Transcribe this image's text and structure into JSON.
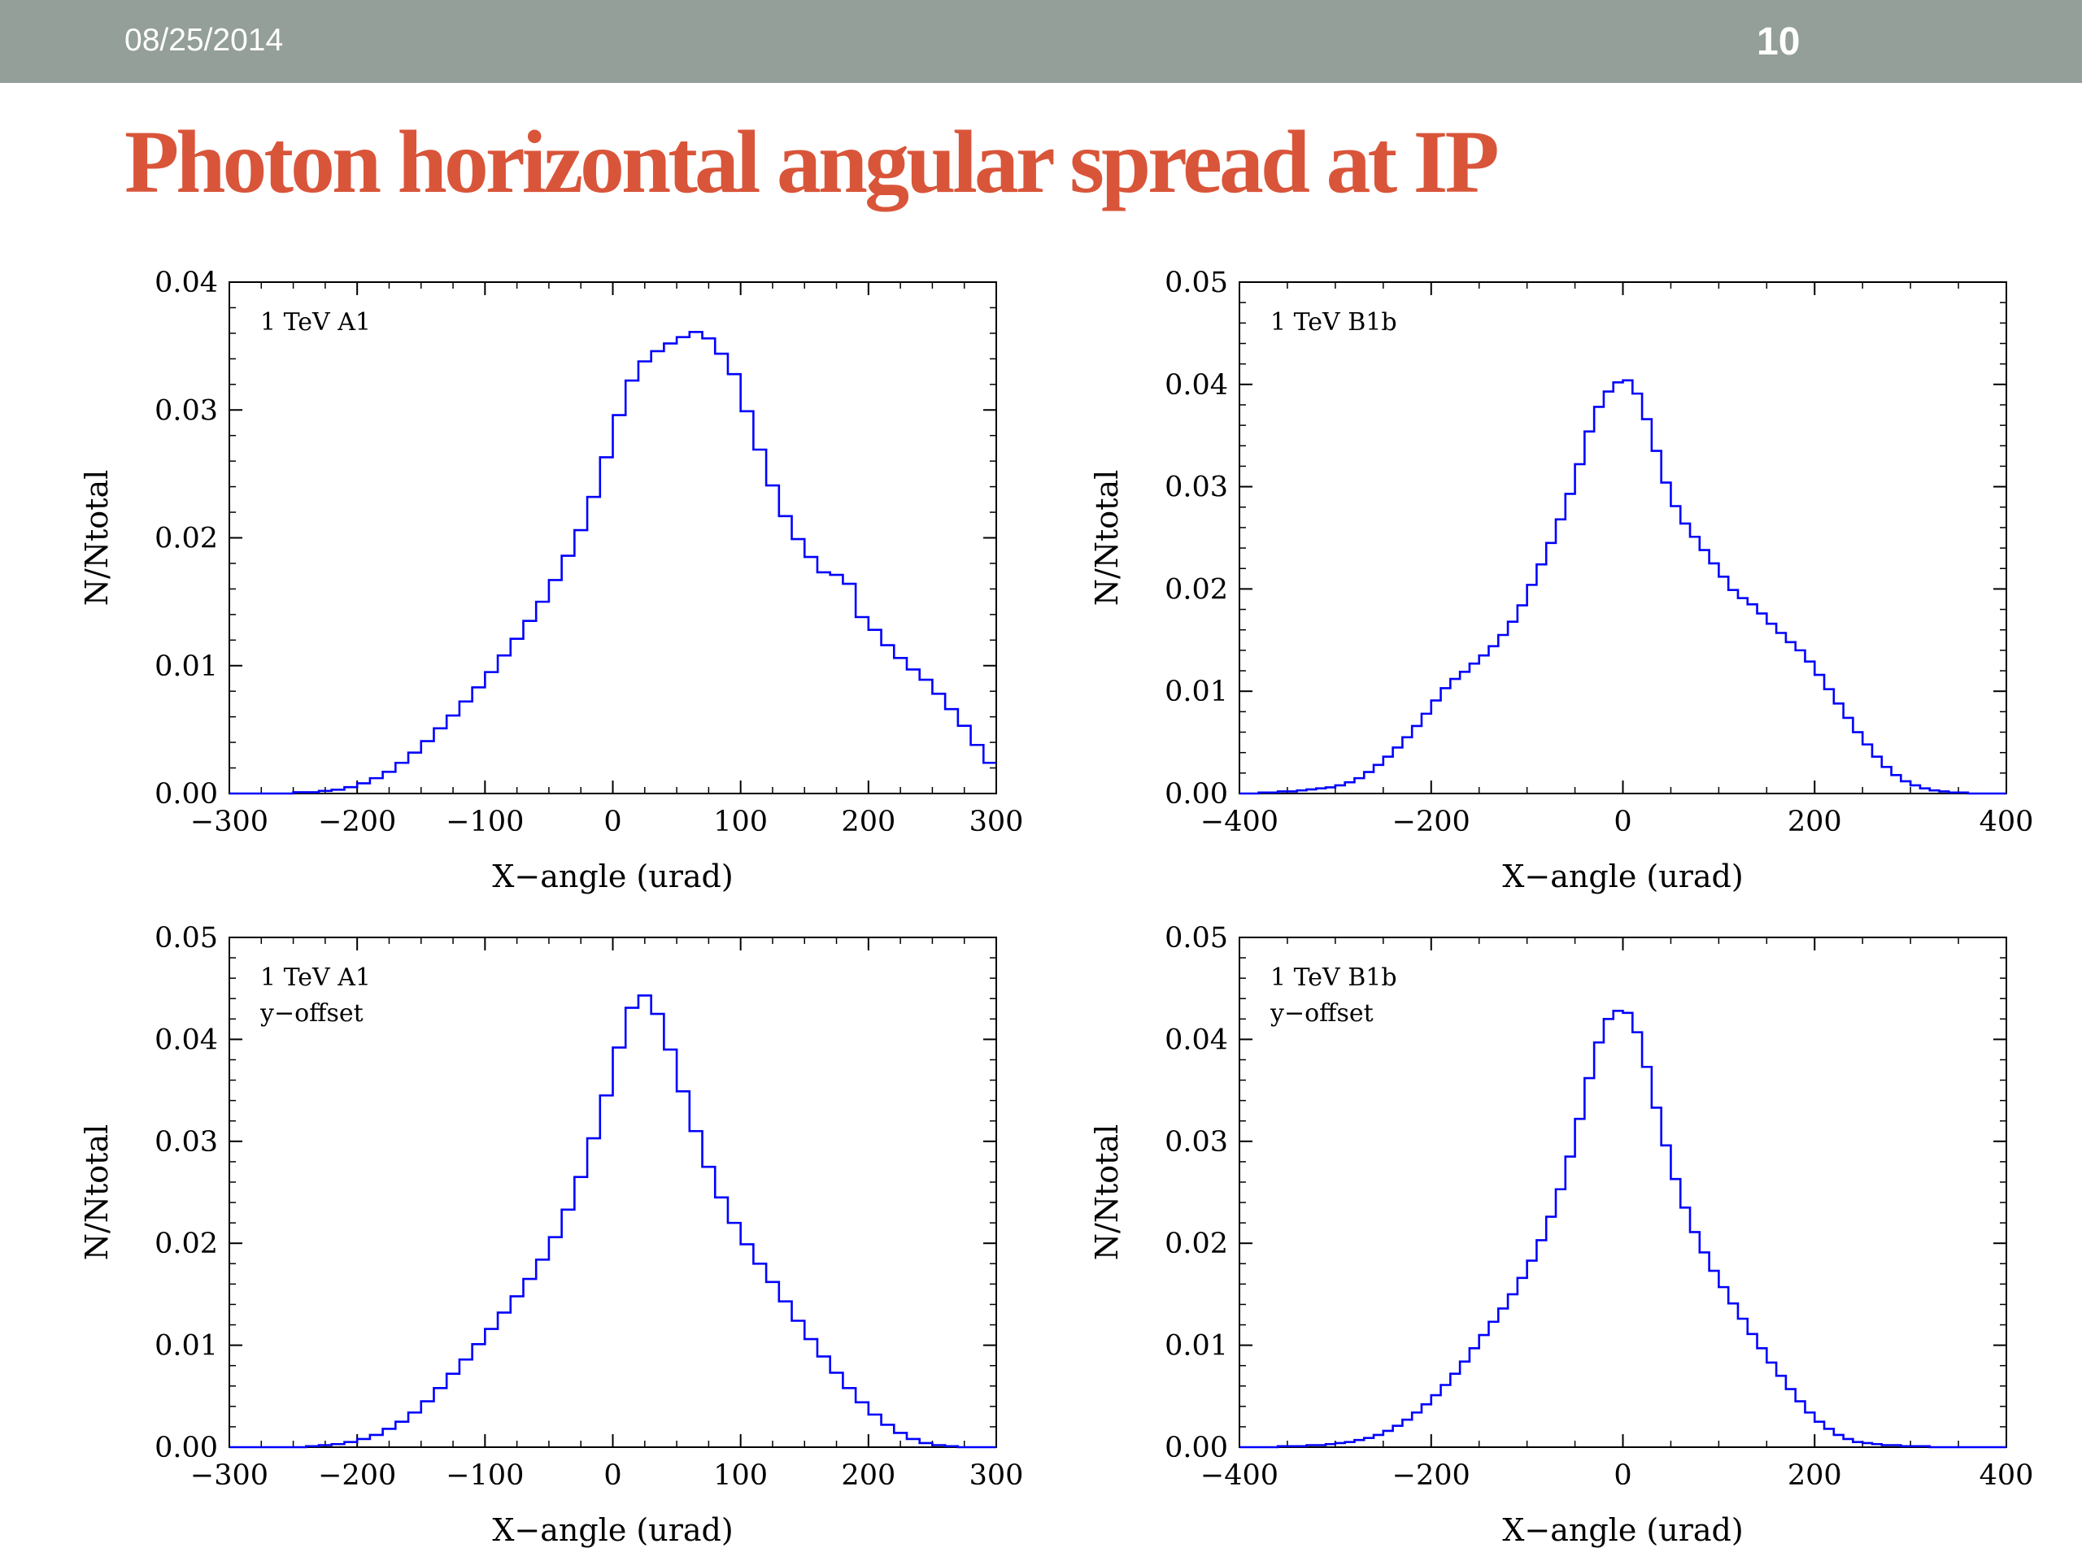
{
  "header": {
    "date": "08/25/2014",
    "slide_number": "10"
  },
  "title": "Photon horizontal angular spread at IP",
  "colors": {
    "line": "#0000ff",
    "header_bg": "#939f98",
    "title": "#d9553a"
  },
  "chart_data": [
    {
      "type": "line",
      "step": true,
      "labels": [
        "1 TeV A1"
      ],
      "xlabel": "X−angle (urad)",
      "ylabel": "N/Ntotal",
      "xlim": [
        -300,
        300
      ],
      "ylim": [
        0,
        0.04
      ],
      "xticks": [
        -300,
        -200,
        -100,
        0,
        100,
        200,
        300
      ],
      "xtick_labels": [
        "−300",
        "−200",
        "−100",
        "0",
        "100",
        "200",
        "300"
      ],
      "yticks": [
        0,
        0.01,
        0.02,
        0.03,
        0.04
      ],
      "ytick_labels": [
        "0.00",
        "0.01",
        "0.02",
        "0.03",
        "0.04"
      ],
      "bin_width": 10,
      "series": [
        {
          "x": [
            -300,
            -290,
            -280,
            -270,
            -260,
            -250,
            -240,
            -230,
            -220,
            -210,
            -200,
            -190,
            -180,
            -170,
            -160,
            -150,
            -140,
            -130,
            -120,
            -110,
            -100,
            -90,
            -80,
            -70,
            -60,
            -50,
            -40,
            -30,
            -20,
            -10,
            0,
            10,
            20,
            30,
            40,
            50,
            60,
            70,
            80,
            90,
            100,
            110,
            120,
            130,
            140,
            150,
            160,
            170,
            180,
            190,
            200,
            210,
            220,
            230,
            240,
            250,
            260,
            270,
            280,
            290
          ],
          "values": [
            0,
            0,
            0,
            0,
            0,
            0.0001,
            0.0001,
            0.0002,
            0.0003,
            0.0005,
            0.0008,
            0.0012,
            0.0017,
            0.0024,
            0.0032,
            0.0041,
            0.0051,
            0.0061,
            0.0072,
            0.0083,
            0.0095,
            0.0108,
            0.0121,
            0.0135,
            0.015,
            0.0167,
            0.0186,
            0.0206,
            0.0232,
            0.0263,
            0.0296,
            0.0323,
            0.0338,
            0.0346,
            0.0352,
            0.0357,
            0.0361,
            0.0356,
            0.0344,
            0.0328,
            0.0299,
            0.0269,
            0.0241,
            0.0217,
            0.0199,
            0.0185,
            0.0173,
            0.0171,
            0.0164,
            0.0138,
            0.0128,
            0.0116,
            0.0106,
            0.0097,
            0.0089,
            0.0078,
            0.0066,
            0.0053,
            0.0038,
            0.0024
          ]
        }
      ]
    },
    {
      "type": "line",
      "step": true,
      "labels": [
        "1 TeV B1b"
      ],
      "xlabel": "X−angle (urad)",
      "ylabel": "N/Ntotal",
      "xlim": [
        -400,
        400
      ],
      "ylim": [
        0,
        0.05
      ],
      "xticks": [
        -400,
        -200,
        0,
        200,
        400
      ],
      "xtick_labels": [
        "−400",
        "−200",
        "0",
        "200",
        "400"
      ],
      "yticks": [
        0,
        0.01,
        0.02,
        0.03,
        0.04,
        0.05
      ],
      "ytick_labels": [
        "0.00",
        "0.01",
        "0.02",
        "0.03",
        "0.04",
        "0.05"
      ],
      "bin_width": 10,
      "series": [
        {
          "x": [
            -400,
            -390,
            -380,
            -370,
            -360,
            -350,
            -340,
            -330,
            -320,
            -310,
            -300,
            -290,
            -280,
            -270,
            -260,
            -250,
            -240,
            -230,
            -220,
            -210,
            -200,
            -190,
            -180,
            -170,
            -160,
            -150,
            -140,
            -130,
            -120,
            -110,
            -100,
            -90,
            -80,
            -70,
            -60,
            -50,
            -40,
            -30,
            -20,
            -10,
            0,
            10,
            20,
            30,
            40,
            50,
            60,
            70,
            80,
            90,
            100,
            110,
            120,
            130,
            140,
            150,
            160,
            170,
            180,
            190,
            200,
            210,
            220,
            230,
            240,
            250,
            260,
            270,
            280,
            290,
            300,
            310,
            320,
            330,
            340,
            350,
            360,
            370,
            380,
            390
          ],
          "values": [
            0,
            0,
            0.0001,
            0.0001,
            0.0002,
            0.0002,
            0.0003,
            0.0004,
            0.0005,
            0.0006,
            0.0008,
            0.0011,
            0.0015,
            0.0021,
            0.0028,
            0.0036,
            0.0045,
            0.0055,
            0.0066,
            0.0078,
            0.0091,
            0.0103,
            0.0112,
            0.0119,
            0.0127,
            0.0135,
            0.0144,
            0.0155,
            0.0168,
            0.0184,
            0.0204,
            0.0224,
            0.0245,
            0.0268,
            0.0293,
            0.0322,
            0.0354,
            0.0378,
            0.0393,
            0.0402,
            0.0404,
            0.0391,
            0.0366,
            0.0335,
            0.0304,
            0.0281,
            0.0264,
            0.0251,
            0.0238,
            0.0225,
            0.0212,
            0.0199,
            0.0191,
            0.0185,
            0.0176,
            0.0166,
            0.0157,
            0.0148,
            0.014,
            0.0129,
            0.0116,
            0.0102,
            0.0088,
            0.0074,
            0.006,
            0.0048,
            0.0036,
            0.0026,
            0.0018,
            0.0012,
            0.0008,
            0.0005,
            0.0003,
            0.0002,
            0.0001,
            0.0001,
            0,
            0,
            0,
            0
          ]
        }
      ]
    },
    {
      "type": "line",
      "step": true,
      "labels": [
        "1 TeV A1",
        "y−offset"
      ],
      "xlabel": "X−angle (urad)",
      "ylabel": "N/Ntotal",
      "xlim": [
        -300,
        300
      ],
      "ylim": [
        0,
        0.05
      ],
      "xticks": [
        -300,
        -200,
        -100,
        0,
        100,
        200,
        300
      ],
      "xtick_labels": [
        "−300",
        "−200",
        "−100",
        "0",
        "100",
        "200",
        "300"
      ],
      "yticks": [
        0,
        0.01,
        0.02,
        0.03,
        0.04,
        0.05
      ],
      "ytick_labels": [
        "0.00",
        "0.01",
        "0.02",
        "0.03",
        "0.04",
        "0.05"
      ],
      "bin_width": 10,
      "series": [
        {
          "x": [
            -300,
            -290,
            -280,
            -270,
            -260,
            -250,
            -240,
            -230,
            -220,
            -210,
            -200,
            -190,
            -180,
            -170,
            -160,
            -150,
            -140,
            -130,
            -120,
            -110,
            -100,
            -90,
            -80,
            -70,
            -60,
            -50,
            -40,
            -30,
            -20,
            -10,
            0,
            10,
            20,
            30,
            40,
            50,
            60,
            70,
            80,
            90,
            100,
            110,
            120,
            130,
            140,
            150,
            160,
            170,
            180,
            190,
            200,
            210,
            220,
            230,
            240,
            250,
            260,
            270,
            280,
            290
          ],
          "values": [
            0,
            0,
            0,
            0,
            0,
            0,
            0.0001,
            0.0002,
            0.0003,
            0.0005,
            0.0008,
            0.0012,
            0.0018,
            0.0025,
            0.0034,
            0.0045,
            0.0058,
            0.0072,
            0.0086,
            0.0101,
            0.0116,
            0.0132,
            0.0148,
            0.0165,
            0.0184,
            0.0206,
            0.0233,
            0.0265,
            0.0303,
            0.0345,
            0.0392,
            0.0431,
            0.0443,
            0.0425,
            0.039,
            0.0349,
            0.031,
            0.0275,
            0.0245,
            0.022,
            0.0199,
            0.018,
            0.0162,
            0.0143,
            0.0124,
            0.0106,
            0.0089,
            0.0073,
            0.0058,
            0.0044,
            0.0032,
            0.0022,
            0.0014,
            0.0008,
            0.0004,
            0.0002,
            0.0001,
            0,
            0,
            0
          ]
        }
      ]
    },
    {
      "type": "line",
      "step": true,
      "labels": [
        "1 TeV B1b",
        "y−offset"
      ],
      "xlabel": "X−angle (urad)",
      "ylabel": "N/Ntotal",
      "xlim": [
        -400,
        400
      ],
      "ylim": [
        0,
        0.05
      ],
      "xticks": [
        -400,
        -200,
        0,
        200,
        400
      ],
      "xtick_labels": [
        "−400",
        "−200",
        "0",
        "200",
        "400"
      ],
      "yticks": [
        0,
        0.01,
        0.02,
        0.03,
        0.04,
        0.05
      ],
      "ytick_labels": [
        "0.00",
        "0.01",
        "0.02",
        "0.03",
        "0.04",
        "0.05"
      ],
      "bin_width": 10,
      "series": [
        {
          "x": [
            -400,
            -390,
            -380,
            -370,
            -360,
            -350,
            -340,
            -330,
            -320,
            -310,
            -300,
            -290,
            -280,
            -270,
            -260,
            -250,
            -240,
            -230,
            -220,
            -210,
            -200,
            -190,
            -180,
            -170,
            -160,
            -150,
            -140,
            -130,
            -120,
            -110,
            -100,
            -90,
            -80,
            -70,
            -60,
            -50,
            -40,
            -30,
            -20,
            -10,
            0,
            10,
            20,
            30,
            40,
            50,
            60,
            70,
            80,
            90,
            100,
            110,
            120,
            130,
            140,
            150,
            160,
            170,
            180,
            190,
            200,
            210,
            220,
            230,
            240,
            250,
            260,
            270,
            280,
            290,
            300,
            310,
            320,
            330,
            340,
            350,
            360,
            370,
            380,
            390
          ],
          "values": [
            0,
            0,
            0,
            0,
            0.0001,
            0.0001,
            0.0001,
            0.0002,
            0.0002,
            0.0003,
            0.0004,
            0.0005,
            0.0007,
            0.0009,
            0.0012,
            0.0016,
            0.0021,
            0.0027,
            0.0034,
            0.0042,
            0.0051,
            0.0061,
            0.0072,
            0.0084,
            0.0097,
            0.011,
            0.0123,
            0.0136,
            0.015,
            0.0166,
            0.0183,
            0.0203,
            0.0226,
            0.0253,
            0.0285,
            0.0322,
            0.0362,
            0.0397,
            0.042,
            0.0428,
            0.0426,
            0.0407,
            0.0373,
            0.0333,
            0.0296,
            0.0263,
            0.0235,
            0.0211,
            0.0191,
            0.0173,
            0.0157,
            0.0141,
            0.0126,
            0.0111,
            0.0097,
            0.0083,
            0.007,
            0.0057,
            0.0045,
            0.0034,
            0.0025,
            0.0018,
            0.0012,
            0.0008,
            0.0005,
            0.0004,
            0.0003,
            0.0002,
            0.0002,
            0.0001,
            0.0001,
            0.0001,
            0,
            0,
            0,
            0,
            0,
            0,
            0,
            0
          ]
        }
      ]
    }
  ]
}
